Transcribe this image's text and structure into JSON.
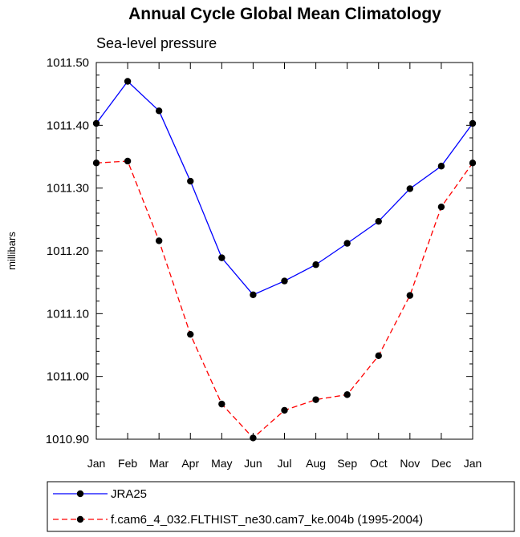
{
  "chart_data": {
    "type": "line",
    "title": "Annual Cycle Global Mean Climatology",
    "subtitle": "Sea-level pressure",
    "xlabel": "",
    "ylabel": "millibars",
    "categories": [
      "Jan",
      "Feb",
      "Mar",
      "Apr",
      "May",
      "Jun",
      "Jul",
      "Aug",
      "Sep",
      "Oct",
      "Nov",
      "Dec",
      "Jan"
    ],
    "ylim": [
      1010.9,
      1011.5
    ],
    "yticks": [
      "1010.90",
      "1011.00",
      "1011.10",
      "1011.20",
      "1011.30",
      "1011.40",
      "1011.50"
    ],
    "grid": false,
    "legend_position": "bottom",
    "series": [
      {
        "name": "JRA25",
        "color": "#0000ff",
        "dash": "solid",
        "marker": "filled-circle",
        "values": [
          1011.403,
          1011.47,
          1011.423,
          1011.311,
          1011.189,
          1011.13,
          1011.152,
          1011.178,
          1011.212,
          1011.247,
          1011.299,
          1011.335,
          1011.403
        ]
      },
      {
        "name": "f.cam6_4_032.FLTHIST_ne30.cam7_ke.004b (1995-2004)",
        "color": "#ff0000",
        "dash": "dashed",
        "marker": "filled-circle",
        "values": [
          1011.34,
          1011.343,
          1011.216,
          1011.067,
          1010.956,
          1010.902,
          1010.946,
          1010.963,
          1010.971,
          1011.033,
          1011.129,
          1011.27,
          1011.34
        ]
      }
    ]
  }
}
